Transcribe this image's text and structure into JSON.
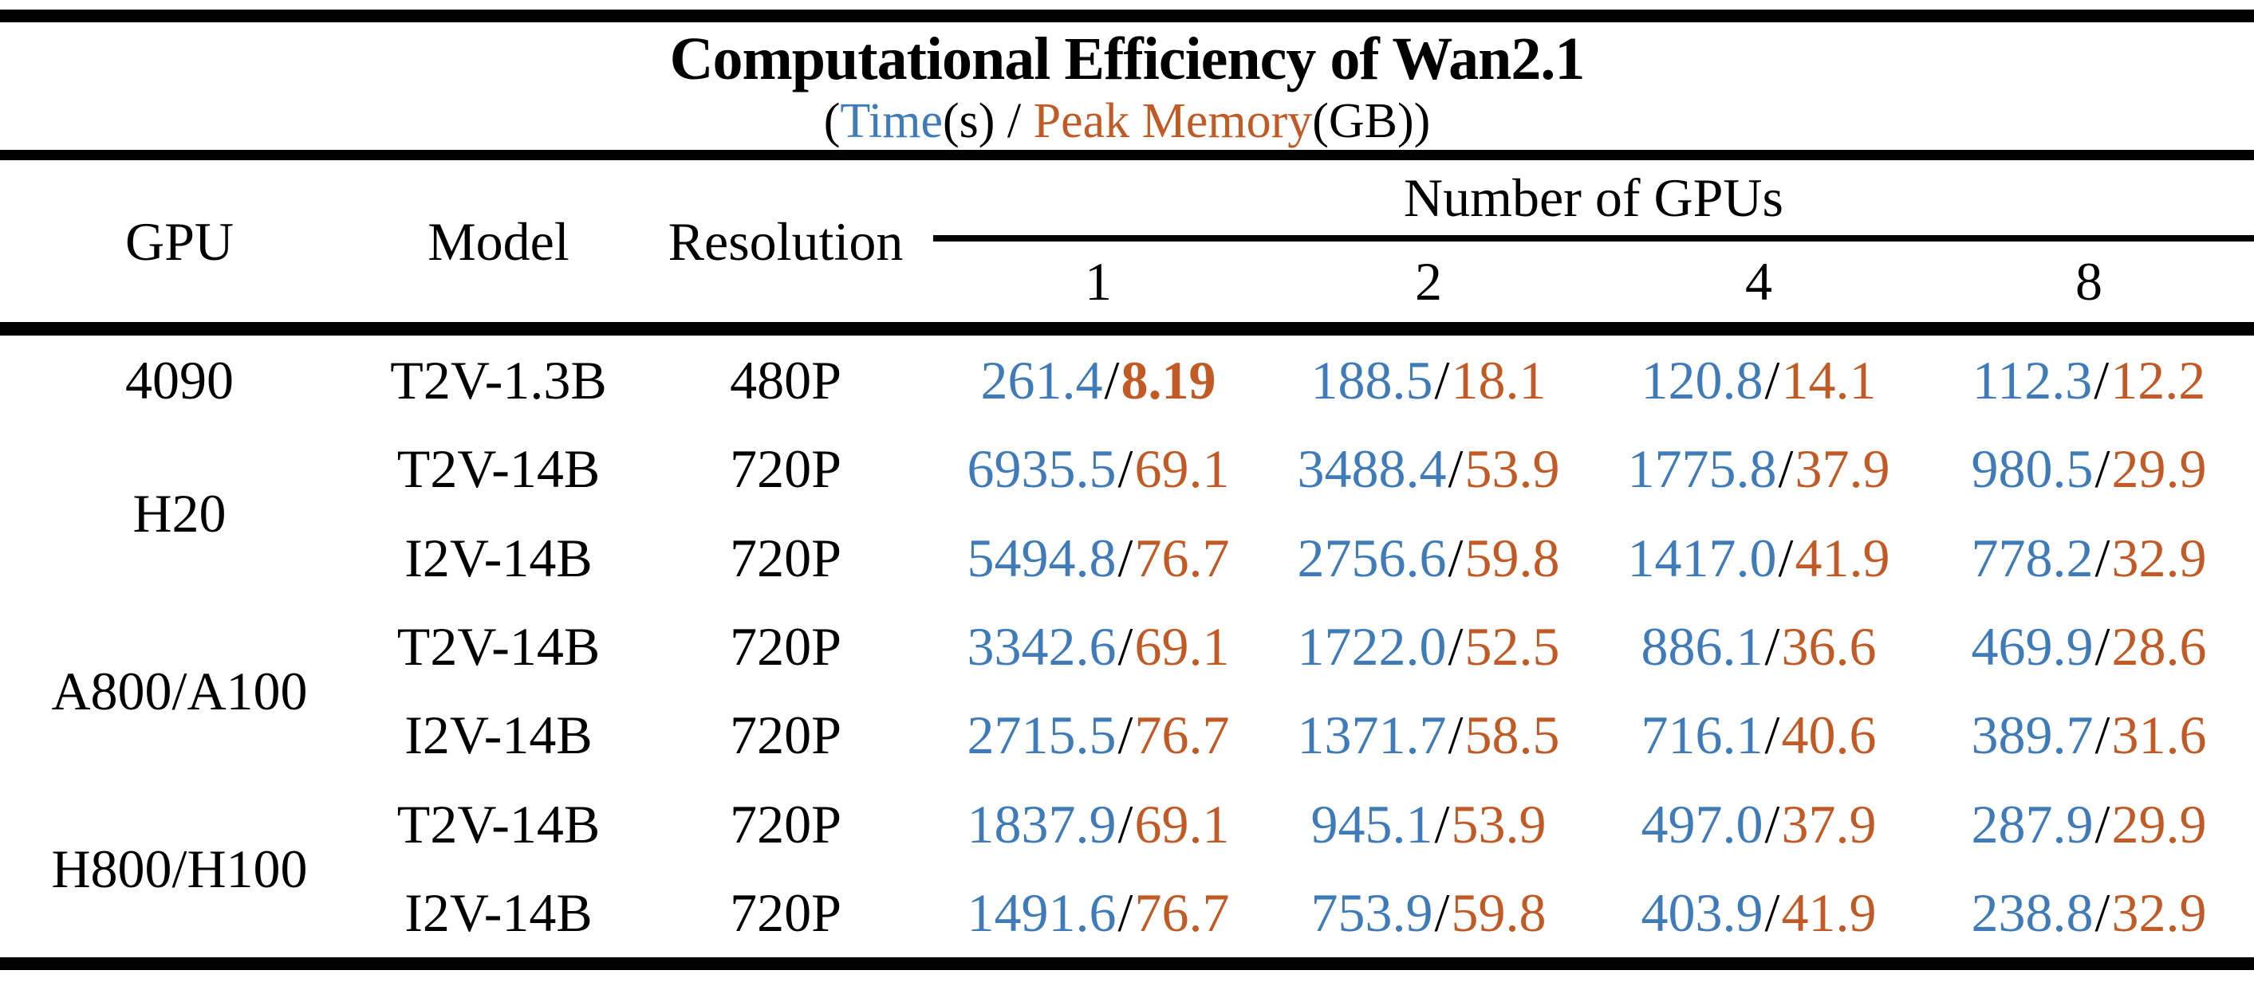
{
  "chart_data": {
    "type": "table",
    "title": "Computational Efficiency of Wan2.1",
    "subtitle_parts": {
      "prefix": "(",
      "time_label": "Time",
      "middle": "(s) / ",
      "memory_label": "Peak Memory",
      "suffix": "(GB))"
    },
    "legend": {
      "time_unit": "s",
      "memory_unit": "GB",
      "time_color": "#3e7bb8",
      "memory_color": "#c15a24"
    },
    "column_headers": {
      "gpu": "GPU",
      "model": "Model",
      "resolution": "Resolution",
      "group": "Number of GPUs",
      "counts": [
        "1",
        "2",
        "4",
        "8"
      ]
    },
    "value_separator": "/",
    "rows": [
      {
        "gpu": "4090",
        "gpu_span": 1,
        "model": "T2V-1.3B",
        "resolution": "480P",
        "cells": [
          {
            "time": "261.4",
            "memory": "8.19",
            "memory_bold": true
          },
          {
            "time": "188.5",
            "memory": "18.1"
          },
          {
            "time": "120.8",
            "memory": "14.1"
          },
          {
            "time": "112.3",
            "memory": "12.2"
          }
        ]
      },
      {
        "gpu": "H20",
        "gpu_span": 2,
        "model": "T2V-14B",
        "resolution": "720P",
        "cells": [
          {
            "time": "6935.5",
            "memory": "69.1"
          },
          {
            "time": "3488.4",
            "memory": "53.9"
          },
          {
            "time": "1775.8",
            "memory": "37.9"
          },
          {
            "time": "980.5",
            "memory": "29.9"
          }
        ]
      },
      {
        "model": "I2V-14B",
        "resolution": "720P",
        "cells": [
          {
            "time": "5494.8",
            "memory": "76.7"
          },
          {
            "time": "2756.6",
            "memory": "59.8"
          },
          {
            "time": "1417.0",
            "memory": "41.9"
          },
          {
            "time": "778.2",
            "memory": "32.9"
          }
        ]
      },
      {
        "gpu": "A800/A100",
        "gpu_span": 2,
        "model": "T2V-14B",
        "resolution": "720P",
        "cells": [
          {
            "time": "3342.6",
            "memory": "69.1"
          },
          {
            "time": "1722.0",
            "memory": "52.5"
          },
          {
            "time": "886.1",
            "memory": "36.6"
          },
          {
            "time": "469.9",
            "memory": "28.6"
          }
        ]
      },
      {
        "model": "I2V-14B",
        "resolution": "720P",
        "cells": [
          {
            "time": "2715.5",
            "memory": "76.7"
          },
          {
            "time": "1371.7",
            "memory": "58.5"
          },
          {
            "time": "716.1",
            "memory": "40.6"
          },
          {
            "time": "389.7",
            "memory": "31.6"
          }
        ]
      },
      {
        "gpu": "H800/H100",
        "gpu_span": 2,
        "model": "T2V-14B",
        "resolution": "720P",
        "cells": [
          {
            "time": "1837.9",
            "memory": "69.1"
          },
          {
            "time": "945.1",
            "memory": "53.9"
          },
          {
            "time": "497.0",
            "memory": "37.9"
          },
          {
            "time": "287.9",
            "memory": "29.9"
          }
        ]
      },
      {
        "model": "I2V-14B",
        "resolution": "720P",
        "cells": [
          {
            "time": "1491.6",
            "memory": "76.7"
          },
          {
            "time": "753.9",
            "memory": "59.8"
          },
          {
            "time": "403.9",
            "memory": "41.9"
          },
          {
            "time": "238.8",
            "memory": "32.9"
          }
        ]
      }
    ]
  }
}
